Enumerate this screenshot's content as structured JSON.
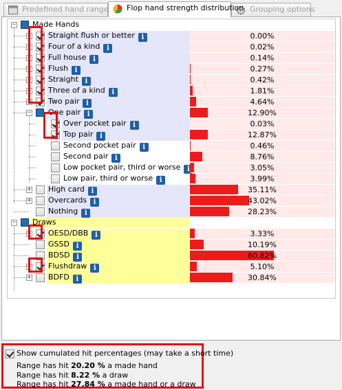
{
  "tabs": [
    {
      "label": "Predefined hand ranges",
      "active": false,
      "icon": "table-icon"
    },
    {
      "label": "Flop hand strength distribution",
      "active": true,
      "icon": "pie-chart-icon"
    },
    {
      "label": "Grouping options",
      "active": false,
      "icon": "gear-icon"
    }
  ],
  "groups": {
    "made_hands": "Made Hands",
    "draws": "Draws"
  },
  "rows": [
    {
      "label": "Straight flush or better",
      "pct": "0.00%",
      "value": 0.0,
      "checked": true,
      "info": true,
      "indent": 1,
      "expander": "+",
      "group": "made"
    },
    {
      "label": "Four of a kind",
      "pct": "0.02%",
      "value": 0.02,
      "checked": true,
      "info": true,
      "indent": 1,
      "expander": "+",
      "group": "made"
    },
    {
      "label": "Full house",
      "pct": "0.14%",
      "value": 0.14,
      "checked": true,
      "info": true,
      "indent": 1,
      "expander": "+",
      "group": "made"
    },
    {
      "label": "Flush",
      "pct": "0.27%",
      "value": 0.27,
      "checked": true,
      "info": true,
      "indent": 1,
      "expander": "+",
      "group": "made"
    },
    {
      "label": "Straight",
      "pct": "0.42%",
      "value": 0.42,
      "checked": true,
      "info": true,
      "indent": 1,
      "expander": "+",
      "group": "made"
    },
    {
      "label": "Three of a kind",
      "pct": "1.81%",
      "value": 1.81,
      "checked": true,
      "info": true,
      "indent": 1,
      "expander": "+",
      "group": "made"
    },
    {
      "label": "Two pair",
      "pct": "4.64%",
      "value": 4.64,
      "checked": true,
      "info": true,
      "indent": 1,
      "expander": "+",
      "group": "made"
    },
    {
      "label": "One pair",
      "pct": "12.90%",
      "value": 12.9,
      "checked": null,
      "info": true,
      "indent": 1,
      "expander": "-",
      "group": "made",
      "folder": true
    },
    {
      "label": "Over pocket pair",
      "pct": "0.03%",
      "value": 0.03,
      "checked": true,
      "info": true,
      "indent": 2,
      "expander": "",
      "group": "made"
    },
    {
      "label": "Top pair",
      "pct": "12.87%",
      "value": 12.87,
      "checked": true,
      "info": true,
      "indent": 2,
      "expander": "",
      "group": "made"
    },
    {
      "label": "Second pocket pair",
      "pct": "0.46%",
      "value": 0.46,
      "checked": false,
      "info": true,
      "indent": 2,
      "expander": "",
      "group": "white"
    },
    {
      "label": "Second pair",
      "pct": "8.76%",
      "value": 8.76,
      "checked": false,
      "info": true,
      "indent": 2,
      "expander": "",
      "group": "white"
    },
    {
      "label": "Low pocket pair, third or worse",
      "pct": "3.05%",
      "value": 3.05,
      "checked": false,
      "info": true,
      "indent": 2,
      "expander": "",
      "group": "white"
    },
    {
      "label": "Low pair, third or worse",
      "pct": "3.99%",
      "value": 3.99,
      "checked": false,
      "info": true,
      "indent": 2,
      "expander": "",
      "group": "white"
    },
    {
      "label": "High card",
      "pct": "35.11%",
      "value": 35.11,
      "checked": false,
      "info": true,
      "indent": 1,
      "expander": "+",
      "group": "made"
    },
    {
      "label": "Overcards",
      "pct": "43.02%",
      "value": 43.02,
      "checked": false,
      "info": true,
      "indent": 1,
      "expander": "+",
      "group": "made"
    },
    {
      "label": "Nothing",
      "pct": "28.23%",
      "value": 28.23,
      "checked": false,
      "info": true,
      "indent": 1,
      "expander": "",
      "group": "made"
    },
    {
      "label": "OESD/DBB",
      "pct": "3.33%",
      "value": 3.33,
      "checked": true,
      "info": true,
      "indent": 1,
      "expander": "+",
      "group": "draw"
    },
    {
      "label": "GSSD",
      "pct": "10.19%",
      "value": 10.19,
      "checked": false,
      "info": true,
      "indent": 1,
      "expander": "",
      "group": "draw"
    },
    {
      "label": "BDSD",
      "pct": "60.82%",
      "value": 60.82,
      "checked": false,
      "info": true,
      "indent": 1,
      "expander": "",
      "group": "draw"
    },
    {
      "label": "Flushdraw",
      "pct": "5.10%",
      "value": 5.1,
      "checked": true,
      "info": true,
      "indent": 1,
      "expander": "+",
      "group": "draw"
    },
    {
      "label": "BDFD",
      "pct": "30.84%",
      "value": 30.84,
      "checked": false,
      "info": true,
      "indent": 1,
      "expander": "+",
      "group": "draw"
    }
  ],
  "bar_scale_max": 60.82,
  "colors": {
    "made_bg": "#e6e6fa",
    "draw_bg": "#ffff99",
    "bar": "#ed1c1c",
    "bar_bg": "#ffe9e9",
    "highlight_box": "#e01010"
  },
  "bottom": {
    "cumulated_label": "Show cumulated hit percentages (may take a short time)",
    "cumulated_checked": true,
    "made_prefix": "Range has hit ",
    "made_value": "20.20 %",
    "made_suffix": " a made hand",
    "draw_prefix": "Range has hit ",
    "draw_value": "8.22 %",
    "draw_suffix": " a draw",
    "either_prefix": "Range has hit ",
    "either_value": "27.84 %",
    "either_suffix": " a made hand or a draw"
  }
}
